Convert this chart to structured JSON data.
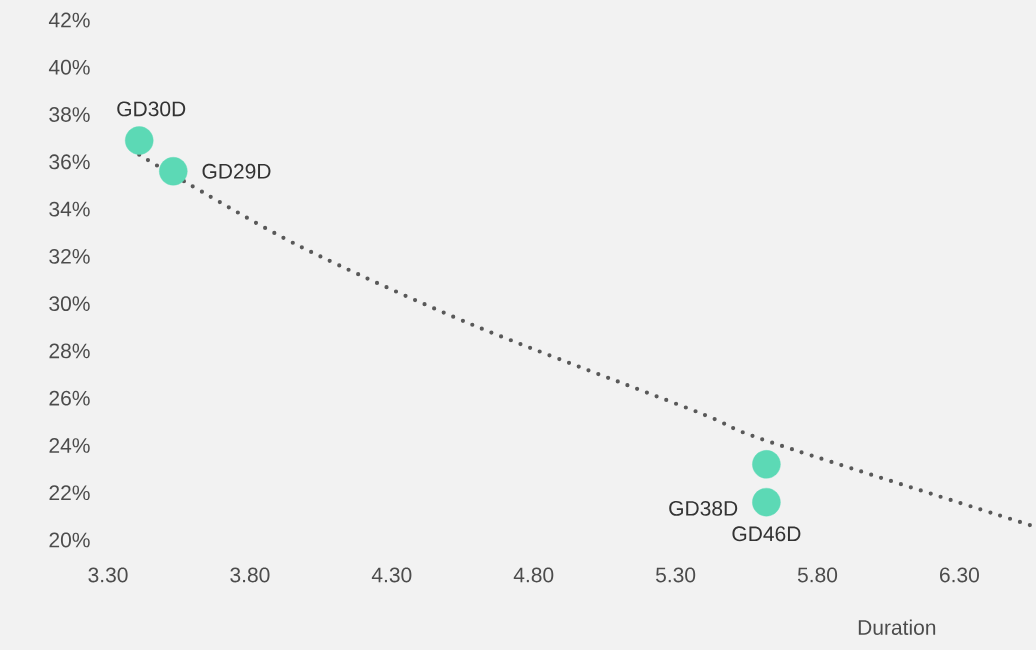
{
  "chart_data": {
    "type": "scatter",
    "xlabel": "Duration",
    "marker": "circle",
    "xlim": [
      3.3,
      6.57
    ],
    "xticks": [
      {
        "value": 3.3,
        "label": "3.30"
      },
      {
        "value": 3.8,
        "label": "3.80"
      },
      {
        "value": 4.3,
        "label": "4.30"
      },
      {
        "value": 4.8,
        "label": "4.80"
      },
      {
        "value": 5.3,
        "label": "5.30"
      },
      {
        "value": 5.8,
        "label": "5.80"
      },
      {
        "value": 6.3,
        "label": "6.30"
      }
    ],
    "ylim": [
      20,
      42
    ],
    "yticks": [
      {
        "value": 20,
        "label": "20%"
      },
      {
        "value": 22,
        "label": "22%"
      },
      {
        "value": 24,
        "label": "24%"
      },
      {
        "value": 26,
        "label": "26%"
      },
      {
        "value": 28,
        "label": "28%"
      },
      {
        "value": 30,
        "label": "30%"
      },
      {
        "value": 32,
        "label": "32%"
      },
      {
        "value": 34,
        "label": "34%"
      },
      {
        "value": 36,
        "label": "36%"
      },
      {
        "value": 38,
        "label": "38%"
      },
      {
        "value": 40,
        "label": "40%"
      },
      {
        "value": 42,
        "label": "42%"
      }
    ],
    "series": [
      {
        "type": "line",
        "color": "#595959",
        "line_style": "dotted",
        "marker": "none",
        "x": [
          3.41,
          3.55,
          3.98,
          4.585,
          5.38,
          5.62,
          6.57
        ],
        "values": [
          36.3,
          35.3,
          32.4,
          29.1,
          25.4,
          24.2,
          20.55
        ]
      },
      {
        "color": "#5cd9b5",
        "x": [
          3.41,
          3.53,
          5.62,
          5.62
        ],
        "values": [
          36.9,
          35.6,
          23.2,
          21.6
        ]
      }
    ],
    "annotations": [
      {
        "text": "GD30D",
        "x": 3.41,
        "y": 36.9
      },
      {
        "text": "GD29D",
        "x": 3.53,
        "y": 35.6
      },
      {
        "text": "GD38D",
        "x": 5.62,
        "y": 23.2
      },
      {
        "text": "GD46D",
        "x": 5.62,
        "y": 21.6
      }
    ]
  }
}
